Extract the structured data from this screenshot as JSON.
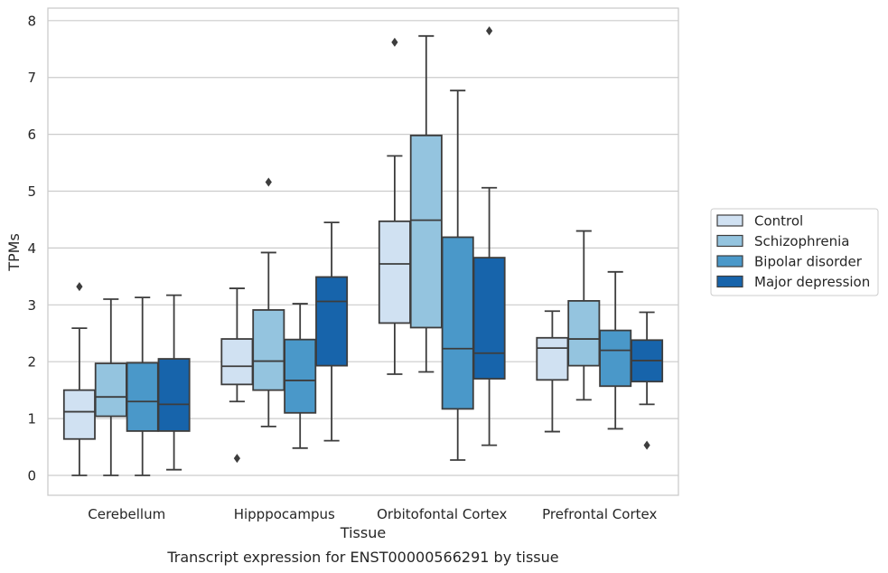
{
  "chart_data": {
    "type": "box",
    "title": "",
    "xlabel": "Tissue",
    "ylabel": "TPMs",
    "caption": "Transcript expression for ENST00000566291 by tissue",
    "ylim": [
      -0.35,
      8.22
    ],
    "yticks": [
      0,
      1,
      2,
      3,
      4,
      5,
      6,
      7,
      8
    ],
    "grid": "horizontal",
    "legend_position": "right",
    "categories": [
      "Cerebellum",
      "Hipppocampus",
      "Orbitofontal Cortex",
      "Prefrontal Cortex"
    ],
    "series": [
      {
        "name": "Control",
        "color": "#d0e1f2",
        "boxes": [
          {
            "whisker_low": 0.0,
            "q1": 0.64,
            "median": 1.12,
            "q3": 1.5,
            "whisker_high": 2.59,
            "outliers": [
              3.32
            ]
          },
          {
            "whisker_low": 1.3,
            "q1": 1.6,
            "median": 1.92,
            "q3": 2.4,
            "whisker_high": 3.29,
            "outliers": [
              0.3
            ]
          },
          {
            "whisker_low": 1.78,
            "q1": 2.68,
            "median": 3.72,
            "q3": 4.47,
            "whisker_high": 5.62,
            "outliers": [
              7.62
            ]
          },
          {
            "whisker_low": 0.77,
            "q1": 1.68,
            "median": 2.24,
            "q3": 2.42,
            "whisker_high": 2.89,
            "outliers": []
          }
        ]
      },
      {
        "name": "Schizophrenia",
        "color": "#94c4df",
        "boxes": [
          {
            "whisker_low": 0.0,
            "q1": 1.04,
            "median": 1.38,
            "q3": 1.97,
            "whisker_high": 3.1,
            "outliers": []
          },
          {
            "whisker_low": 0.86,
            "q1": 1.5,
            "median": 2.01,
            "q3": 2.91,
            "whisker_high": 3.92,
            "outliers": [
              5.16
            ]
          },
          {
            "whisker_low": 1.82,
            "q1": 2.6,
            "median": 4.49,
            "q3": 5.98,
            "whisker_high": 7.73,
            "outliers": []
          },
          {
            "whisker_low": 1.33,
            "q1": 1.93,
            "median": 2.4,
            "q3": 3.07,
            "whisker_high": 4.3,
            "outliers": []
          }
        ]
      },
      {
        "name": "Bipolar disorder",
        "color": "#4a98c9",
        "boxes": [
          {
            "whisker_low": 0.0,
            "q1": 0.78,
            "median": 1.3,
            "q3": 1.98,
            "whisker_high": 3.13,
            "outliers": []
          },
          {
            "whisker_low": 0.48,
            "q1": 1.1,
            "median": 1.67,
            "q3": 2.39,
            "whisker_high": 3.02,
            "outliers": []
          },
          {
            "whisker_low": 0.27,
            "q1": 1.17,
            "median": 2.23,
            "q3": 4.19,
            "whisker_high": 6.77,
            "outliers": []
          },
          {
            "whisker_low": 0.82,
            "q1": 1.57,
            "median": 2.2,
            "q3": 2.55,
            "whisker_high": 3.58,
            "outliers": []
          }
        ]
      },
      {
        "name": "Major depression",
        "color": "#1764ab",
        "boxes": [
          {
            "whisker_low": 0.1,
            "q1": 0.78,
            "median": 1.25,
            "q3": 2.05,
            "whisker_high": 3.17,
            "outliers": []
          },
          {
            "whisker_low": 0.61,
            "q1": 1.93,
            "median": 3.06,
            "q3": 3.49,
            "whisker_high": 4.45,
            "outliers": []
          },
          {
            "whisker_low": 0.53,
            "q1": 1.7,
            "median": 2.15,
            "q3": 3.83,
            "whisker_high": 5.06,
            "outliers": [
              7.82
            ]
          },
          {
            "whisker_low": 1.25,
            "q1": 1.65,
            "median": 2.02,
            "q3": 2.38,
            "whisker_high": 2.87,
            "outliers": [
              0.53
            ]
          }
        ]
      }
    ]
  }
}
